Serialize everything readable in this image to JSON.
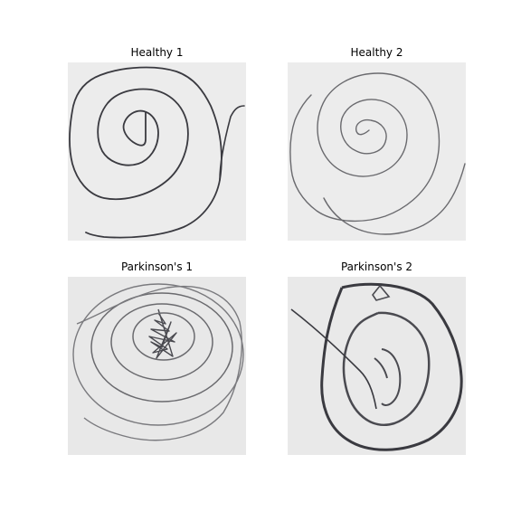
{
  "figure": {
    "panels": [
      {
        "title": "Healthy 1"
      },
      {
        "title": "Healthy 2"
      },
      {
        "title": "Parkinson's 1"
      },
      {
        "title": "Parkinson's 2"
      }
    ]
  },
  "colors": {
    "paper": "#ececec",
    "ink_dark": "#3a3a40",
    "ink_light": "#6a6a6e"
  }
}
